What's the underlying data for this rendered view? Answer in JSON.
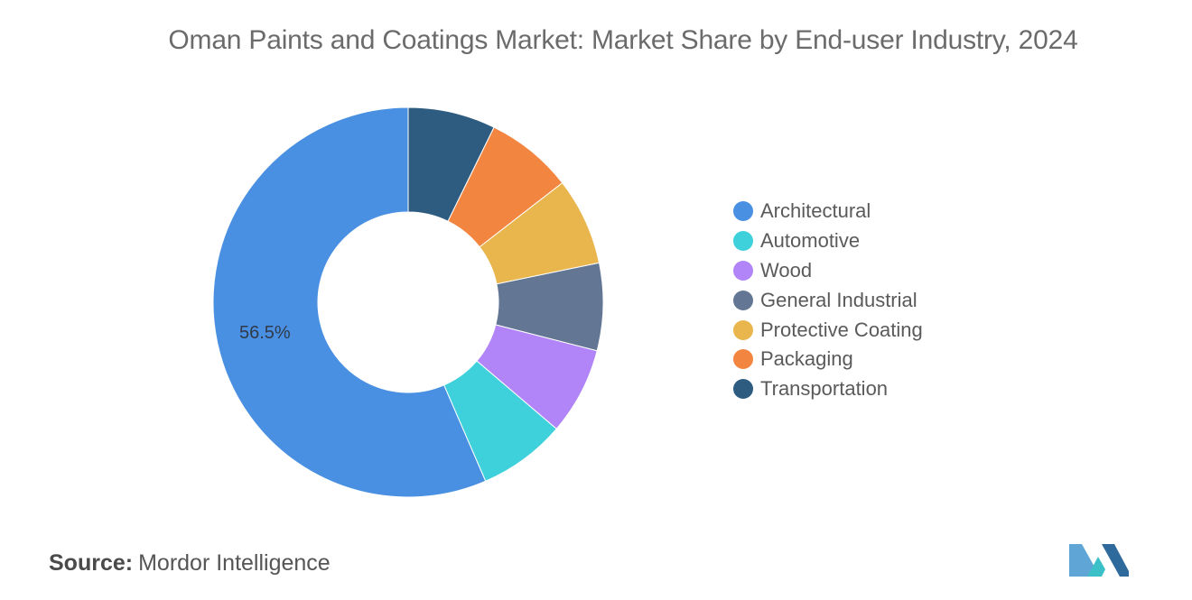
{
  "chart_data": {
    "type": "pie",
    "title": "Oman Paints and Coatings Market: Market Share by End-user Industry, 2024",
    "categories": [
      "Architectural",
      "Automotive",
      "Wood",
      "General Industrial",
      "Protective Coating",
      "Packaging",
      "Transportation"
    ],
    "values": [
      56.5,
      7.25,
      7.25,
      7.25,
      7.25,
      7.25,
      7.25
    ],
    "data_labels": [
      "56.5%",
      "",
      "",
      "",
      "",
      "",
      ""
    ],
    "colors": [
      "#4a90e2",
      "#3fd1db",
      "#b185f7",
      "#637694",
      "#e8b64c",
      "#f28641",
      "#2e5c80"
    ],
    "donut": true,
    "legend_position": "right"
  },
  "source": {
    "label": "Source:",
    "value": "Mordor Intelligence"
  },
  "logo": {
    "colors": [
      "#5fa5d6",
      "#3cc0c7",
      "#2f6a9c"
    ]
  }
}
